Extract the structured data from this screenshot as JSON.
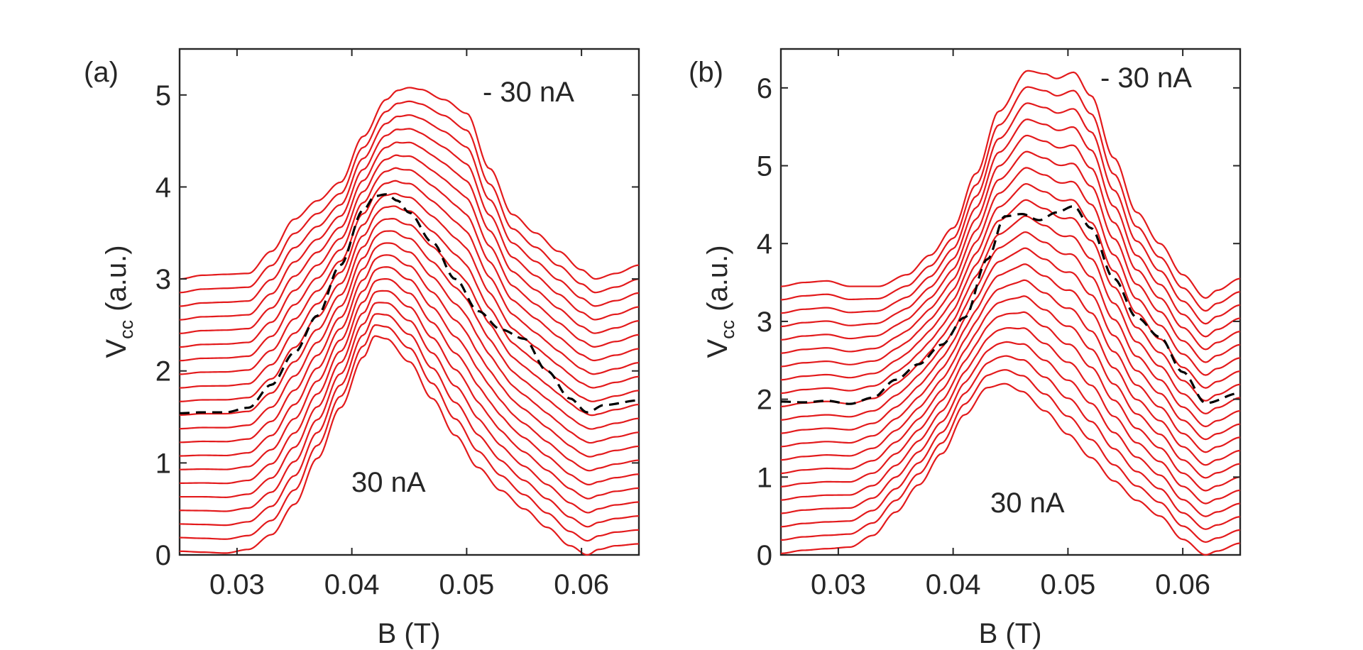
{
  "chart_data": [
    {
      "panel": "a",
      "type": "line",
      "tag": "(a)",
      "xlabel": "B (T)",
      "ylabel_main": "V",
      "ylabel_sub": "cc",
      "ylabel_unit": "(a.u.)",
      "xlim": [
        0.025,
        0.065
      ],
      "ylim": [
        0,
        5.5
      ],
      "xticks": [
        0.03,
        0.04,
        0.05,
        0.06
      ],
      "xtick_labels": [
        "0.03",
        "0.04",
        "0.05",
        "0.06"
      ],
      "yticks": [
        0,
        1,
        2,
        3,
        4,
        5
      ],
      "ytick_labels": [
        "0",
        "1",
        "2",
        "3",
        "4",
        "5"
      ],
      "annotation_top": "- 30 nA",
      "annotation_bottom": "30 nA",
      "trace_count": 21,
      "dashed_index": 10,
      "offset_step": 0.15,
      "bottom_trace": {
        "x": [
          0.025,
          0.027,
          0.029,
          0.031,
          0.033,
          0.035,
          0.037,
          0.039,
          0.041,
          0.042,
          0.043,
          0.045,
          0.047,
          0.049,
          0.051,
          0.053,
          0.055,
          0.057,
          0.059,
          0.0605,
          0.0615,
          0.063,
          0.065
        ],
        "y": [
          0.04,
          0.03,
          0.02,
          0.06,
          0.22,
          0.55,
          1.05,
          1.6,
          2.15,
          2.38,
          2.35,
          2.1,
          1.7,
          1.3,
          0.95,
          0.7,
          0.5,
          0.3,
          0.1,
          0.0,
          0.06,
          0.1,
          0.12
        ]
      },
      "top_trace": {
        "x": [
          0.025,
          0.027,
          0.029,
          0.031,
          0.033,
          0.035,
          0.037,
          0.039,
          0.041,
          0.043,
          0.044,
          0.045,
          0.046,
          0.048,
          0.05,
          0.052,
          0.054,
          0.056,
          0.058,
          0.06,
          0.0612,
          0.063,
          0.065
        ],
        "y": [
          3.0,
          3.04,
          3.05,
          3.06,
          3.3,
          3.65,
          3.85,
          4.05,
          4.55,
          4.95,
          5.05,
          5.08,
          5.06,
          4.95,
          4.8,
          4.2,
          3.7,
          3.5,
          3.3,
          3.1,
          3.0,
          3.06,
          3.15
        ]
      },
      "dashed_trace": {
        "x": [
          0.025,
          0.027,
          0.029,
          0.031,
          0.033,
          0.035,
          0.037,
          0.039,
          0.041,
          0.042,
          0.043,
          0.044,
          0.045,
          0.047,
          0.049,
          0.051,
          0.053,
          0.055,
          0.057,
          0.059,
          0.0605,
          0.062,
          0.065
        ],
        "y": [
          1.54,
          1.55,
          1.55,
          1.6,
          1.85,
          2.2,
          2.6,
          3.15,
          3.75,
          3.9,
          3.92,
          3.85,
          3.72,
          3.4,
          3.0,
          2.65,
          2.45,
          2.35,
          2.0,
          1.7,
          1.55,
          1.63,
          1.68
        ]
      }
    },
    {
      "panel": "b",
      "type": "line",
      "tag": "(b)",
      "xlabel": "B (T)",
      "ylabel_main": "V",
      "ylabel_sub": "cc",
      "ylabel_unit": "(a.u.)",
      "xlim": [
        0.025,
        0.065
      ],
      "ylim": [
        0,
        6.5
      ],
      "xticks": [
        0.03,
        0.04,
        0.05,
        0.06
      ],
      "xtick_labels": [
        "0.03",
        "0.04",
        "0.05",
        "0.06"
      ],
      "yticks": [
        0,
        1,
        2,
        3,
        4,
        5,
        6
      ],
      "ytick_labels": [
        "0",
        "1",
        "2",
        "3",
        "4",
        "5",
        "6"
      ],
      "annotation_top": "- 30 nA",
      "annotation_bottom": "30 nA",
      "trace_count": 21,
      "dashed_index": 10,
      "offset_step": 0.16,
      "bottom_trace": {
        "x": [
          0.025,
          0.027,
          0.029,
          0.031,
          0.033,
          0.035,
          0.037,
          0.039,
          0.041,
          0.043,
          0.0445,
          0.046,
          0.048,
          0.05,
          0.052,
          0.054,
          0.056,
          0.058,
          0.06,
          0.062,
          0.063,
          0.065
        ],
        "y": [
          0.02,
          0.06,
          0.08,
          0.1,
          0.25,
          0.55,
          0.9,
          1.3,
          1.8,
          2.15,
          2.2,
          2.1,
          1.85,
          1.55,
          1.25,
          0.95,
          0.7,
          0.5,
          0.2,
          0.0,
          0.05,
          0.15
        ]
      },
      "top_trace": {
        "x": [
          0.025,
          0.027,
          0.029,
          0.031,
          0.0335,
          0.036,
          0.038,
          0.04,
          0.042,
          0.044,
          0.0465,
          0.048,
          0.049,
          0.0505,
          0.052,
          0.054,
          0.056,
          0.058,
          0.06,
          0.062,
          0.063,
          0.065
        ],
        "y": [
          3.45,
          3.5,
          3.52,
          3.45,
          3.45,
          3.6,
          3.85,
          4.2,
          4.9,
          5.7,
          6.22,
          6.18,
          6.12,
          6.2,
          5.9,
          5.1,
          4.4,
          4.0,
          3.6,
          3.3,
          3.4,
          3.55
        ]
      },
      "dashed_trace": {
        "x": [
          0.025,
          0.027,
          0.029,
          0.031,
          0.033,
          0.035,
          0.037,
          0.039,
          0.041,
          0.043,
          0.0445,
          0.046,
          0.0475,
          0.049,
          0.0505,
          0.052,
          0.054,
          0.056,
          0.058,
          0.06,
          0.062,
          0.065
        ],
        "y": [
          1.97,
          1.96,
          1.98,
          1.94,
          2.02,
          2.25,
          2.45,
          2.7,
          3.05,
          3.8,
          4.35,
          4.38,
          4.3,
          4.4,
          4.48,
          4.2,
          3.55,
          3.05,
          2.8,
          2.35,
          1.95,
          2.08
        ]
      }
    }
  ]
}
